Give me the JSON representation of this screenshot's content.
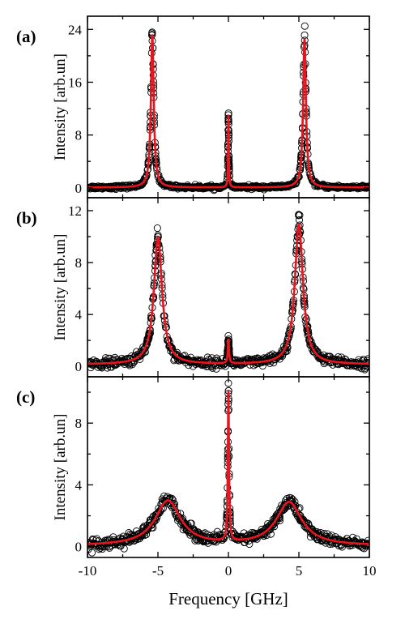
{
  "colors": {
    "fit": "#e8141e",
    "points": "#000000",
    "axes": "#000000"
  },
  "xlabel": "Frequency [GHz]",
  "chart_data": [
    {
      "type": "scatter",
      "panel_label": "(a)",
      "ylabel": "Intensity [arb.un]",
      "xlim": [
        -10,
        10
      ],
      "ylim": [
        -1.5,
        26
      ],
      "x_ticks": [
        -10,
        -5,
        0,
        5,
        10
      ],
      "y_ticks": [
        0,
        8,
        16,
        24
      ],
      "y_tick_labels": [
        "0",
        "8",
        "16",
        "24"
      ],
      "series": [
        {
          "kind": "measured",
          "style": "open-circles",
          "color": "#000000"
        },
        {
          "kind": "fit",
          "style": "line",
          "color": "#e8141e"
        }
      ],
      "peaks": [
        {
          "center": -5.4,
          "height": 23.2,
          "width": 0.12
        },
        {
          "center": 0.0,
          "height": 11.0,
          "width": 0.03
        },
        {
          "center": 5.4,
          "height": 22.6,
          "width": 0.12
        }
      ],
      "baseline": 0.05,
      "noise": 0.35,
      "labels": [
        "",
        "",
        ""
      ]
    },
    {
      "type": "scatter",
      "panel_label": "(b)",
      "ylabel": "Intensity [arb.un]",
      "xlim": [
        -10,
        10
      ],
      "ylim": [
        -0.8,
        13
      ],
      "x_ticks": [
        -10,
        -5,
        0,
        5,
        10
      ],
      "y_ticks": [
        0,
        4,
        8,
        12
      ],
      "y_tick_labels": [
        "0",
        "4",
        "8",
        "12"
      ],
      "series": [
        {
          "kind": "measured",
          "style": "open-circles",
          "color": "#000000"
        },
        {
          "kind": "fit",
          "style": "line",
          "color": "#e8141e"
        }
      ],
      "peaks": [
        {
          "center": -5.0,
          "height": 9.8,
          "width": 0.35
        },
        {
          "center": 0.0,
          "height": 1.9,
          "width": 0.05
        },
        {
          "center": 5.0,
          "height": 10.8,
          "width": 0.35
        }
      ],
      "baseline": 0.15,
      "noise": 0.45,
      "labels": [
        "",
        "",
        ""
      ]
    },
    {
      "type": "scatter",
      "panel_label": "(c)",
      "ylabel": "Intensity [arb.un]",
      "xlim": [
        -10,
        10
      ],
      "ylim": [
        -0.7,
        11
      ],
      "x_ticks": [
        -10,
        -5,
        0,
        5,
        10
      ],
      "x_tick_labels": [
        "-10",
        "-5",
        "0",
        "5",
        "10"
      ],
      "y_ticks": [
        0,
        4,
        8
      ],
      "y_tick_labels": [
        "0",
        "4",
        "8"
      ],
      "series": [
        {
          "kind": "measured",
          "style": "open-circles",
          "color": "#000000"
        },
        {
          "kind": "fit",
          "style": "line",
          "color": "#e8141e"
        }
      ],
      "peaks": [
        {
          "center": -4.3,
          "height": 2.9,
          "width": 1.1
        },
        {
          "center": 0.0,
          "height": 9.7,
          "width": 0.05
        },
        {
          "center": 4.3,
          "height": 2.8,
          "width": 1.1
        }
      ],
      "baseline": 0.05,
      "noise": 0.45,
      "labels": [
        "",
        "",
        ""
      ]
    }
  ]
}
